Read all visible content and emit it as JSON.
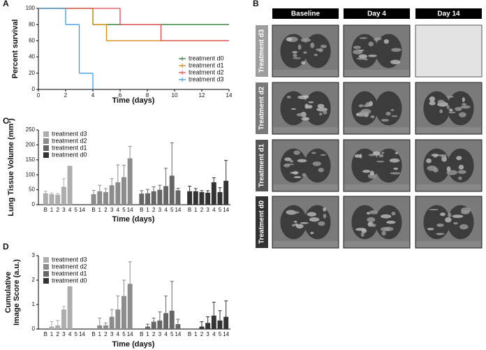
{
  "chart_data": [
    {
      "type": "line",
      "panel": "A",
      "drawstyle": "steps-post",
      "x_label": "Time (days)",
      "y_label": "Percent survival",
      "xlim": [
        0,
        14
      ],
      "xticks": [
        0,
        2,
        4,
        6,
        8,
        10,
        12,
        14
      ],
      "ylim": [
        0,
        100
      ],
      "yticks": [
        0,
        20,
        40,
        60,
        80,
        100
      ],
      "legend": "lower right",
      "grid": false,
      "series": [
        {
          "name": "treatment d0",
          "color": "#2e7d32",
          "x": [
            0,
            4,
            14
          ],
          "values": [
            100,
            80,
            80
          ]
        },
        {
          "name": "treatment d1",
          "color": "#d4890a",
          "x": [
            0,
            4,
            5,
            14
          ],
          "values": [
            100,
            80,
            60,
            60
          ]
        },
        {
          "name": "treatment d2",
          "color": "#e0474c",
          "x": [
            0,
            6,
            9,
            14
          ],
          "values": [
            100,
            80,
            60,
            60
          ]
        },
        {
          "name": "treatment d3",
          "color": "#3b9be0",
          "x": [
            0,
            2,
            3,
            4
          ],
          "values": [
            100,
            80,
            20,
            0
          ]
        }
      ]
    },
    {
      "type": "bar",
      "panel": "C",
      "x_label": "Time (days)",
      "y_label": [
        "Lung Tissue Volume (mm³)"
      ],
      "categories": [
        "B",
        "1",
        "2",
        "3",
        "4",
        "5",
        "14"
      ],
      "ylim": [
        0,
        250
      ],
      "yticks": [
        0,
        50,
        100,
        150,
        200,
        250
      ],
      "legend": "upper left",
      "grid": false,
      "series": [
        {
          "name": "treatment d3",
          "color": "#adadad",
          "values": [
            38,
            35,
            33,
            60,
            130,
            null,
            null
          ],
          "errors": [
            7,
            4,
            4,
            27,
            null,
            null,
            null
          ]
        },
        {
          "name": "treatment d2",
          "color": "#8c8c8c",
          "values": [
            35,
            45,
            42,
            65,
            75,
            92,
            155
          ],
          "errors": [
            13,
            20,
            12,
            22,
            58,
            40,
            40
          ]
        },
        {
          "name": "treatment d1",
          "color": "#666666",
          "values": [
            37,
            38,
            45,
            50,
            62,
            97,
            48
          ],
          "errors": [
            10,
            13,
            15,
            15,
            60,
            110,
            7
          ]
        },
        {
          "name": "treatment d0",
          "color": "#333333",
          "values": [
            45,
            45,
            42,
            40,
            75,
            42,
            80
          ],
          "errors": [
            17,
            9,
            5,
            7,
            15,
            15,
            68
          ]
        }
      ]
    },
    {
      "type": "bar",
      "panel": "D",
      "x_label": "Time (days)",
      "y_label": [
        "Cumulative",
        "Image Score (a.u.)"
      ],
      "categories": [
        "B",
        "1",
        "2",
        "3",
        "4",
        "5",
        "14"
      ],
      "ylim": [
        0,
        3
      ],
      "yticks": [
        0,
        1,
        2,
        3
      ],
      "legend": "upper left",
      "grid": false,
      "series": [
        {
          "name": "treatment d3",
          "color": "#adadad",
          "values": [
            0,
            0.1,
            0.15,
            0.8,
            1.75,
            null,
            null
          ],
          "errors": [
            null,
            0.2,
            0.2,
            0.12,
            null,
            null,
            null
          ]
        },
        {
          "name": "treatment d2",
          "color": "#8c8c8c",
          "values": [
            0,
            0.15,
            0.15,
            0.5,
            0.8,
            1.35,
            1.85
          ],
          "errors": [
            null,
            0.3,
            0.1,
            0.3,
            0.55,
            0.65,
            0.9
          ]
        },
        {
          "name": "treatment d1",
          "color": "#666666",
          "values": [
            0,
            0.1,
            0.3,
            0.35,
            0.65,
            0.75,
            0.2
          ],
          "errors": [
            null,
            0.1,
            0.15,
            0.35,
            0.7,
            1.2,
            0.2
          ]
        },
        {
          "name": "treatment d0",
          "color": "#333333",
          "values": [
            0,
            0,
            0.1,
            0.25,
            0.55,
            0.35,
            0.5
          ],
          "errors": [
            null,
            null,
            0.2,
            0.25,
            0.55,
            0.4,
            0.65
          ]
        }
      ]
    }
  ],
  "image_panel": {
    "panel": "B",
    "column_headers": [
      "Baseline",
      "Day 4",
      "Day 14"
    ],
    "row_labels": [
      "Treatment d3",
      "Treatment d2",
      "Treatment d1",
      "Treatment d0"
    ]
  }
}
